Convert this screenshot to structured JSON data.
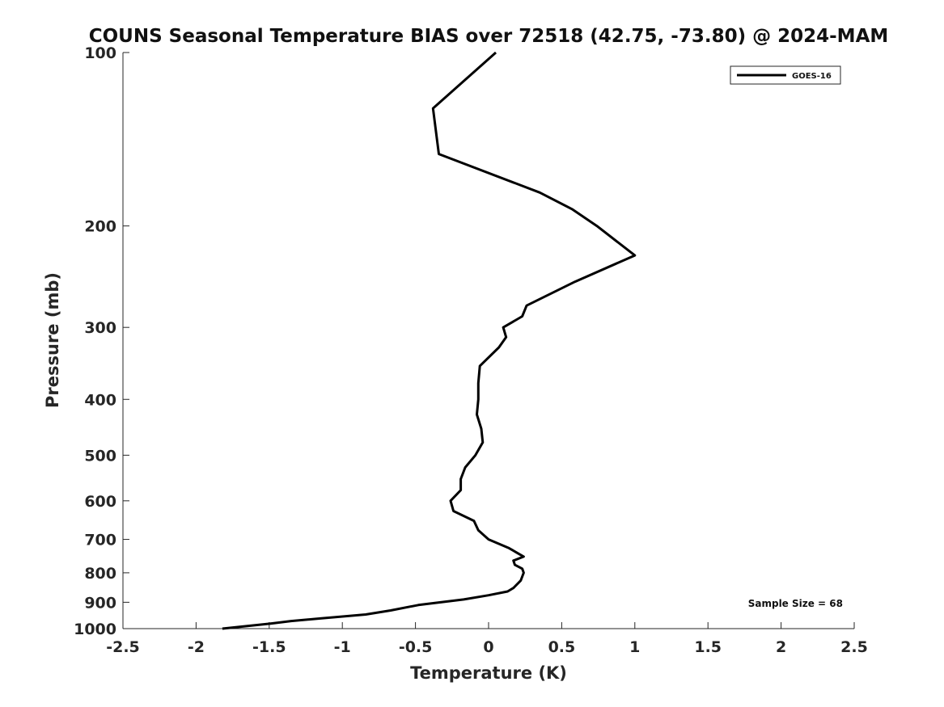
{
  "chart_data": {
    "type": "line",
    "title": "COUNS Seasonal Temperature BIAS over 72518 (42.75, -73.80) @ 2024-MAM",
    "xlabel": "Temperature (K)",
    "ylabel": "Pressure (mb)",
    "xlim": [
      -2.5,
      2.5
    ],
    "ylim": [
      100,
      1000
    ],
    "y_scale": "log",
    "y_reversed": true,
    "grid": false,
    "x_ticks": [
      -2.5,
      -2,
      -1.5,
      -1,
      -0.5,
      0,
      0.5,
      1,
      1.5,
      2,
      2.5
    ],
    "x_tick_labels": [
      "-2.5",
      "-2",
      "-1.5",
      "-1",
      "-0.5",
      "0",
      "0.5",
      "1",
      "1.5",
      "2",
      "2.5"
    ],
    "y_ticks": [
      100,
      200,
      300,
      400,
      500,
      600,
      700,
      800,
      900,
      1000
    ],
    "y_tick_labels": [
      "100",
      "200",
      "300",
      "400",
      "500",
      "600",
      "700",
      "800",
      "900",
      "1000"
    ],
    "legend_position": "top-right",
    "annotation": "Sample Size = 68",
    "series": [
      {
        "name": "GOES-16",
        "color": "#000000",
        "temperature": [
          0.05,
          -0.38,
          -0.34,
          0.35,
          0.57,
          0.74,
          1.0,
          0.59,
          0.26,
          0.23,
          0.1,
          0.12,
          0.07,
          -0.06,
          -0.07,
          -0.07,
          -0.08,
          -0.05,
          -0.04,
          -0.09,
          -0.16,
          -0.19,
          -0.19,
          -0.26,
          -0.24,
          -0.1,
          -0.07,
          0.0,
          0.14,
          0.24,
          0.17,
          0.18,
          0.23,
          0.24,
          0.22,
          0.17,
          0.13,
          0.0,
          -0.17,
          -0.48,
          -0.67,
          -0.84,
          -1.15,
          -1.35,
          -1.49,
          -1.82
        ],
        "pressure": [
          100,
          125,
          150,
          175,
          187,
          200,
          225,
          250,
          275,
          287,
          300,
          312,
          325,
          350,
          375,
          400,
          425,
          450,
          475,
          500,
          525,
          550,
          575,
          600,
          625,
          650,
          675,
          700,
          725,
          750,
          762,
          775,
          787,
          800,
          825,
          850,
          862,
          875,
          890,
          910,
          930,
          945,
          960,
          970,
          980,
          1000
        ]
      }
    ]
  }
}
